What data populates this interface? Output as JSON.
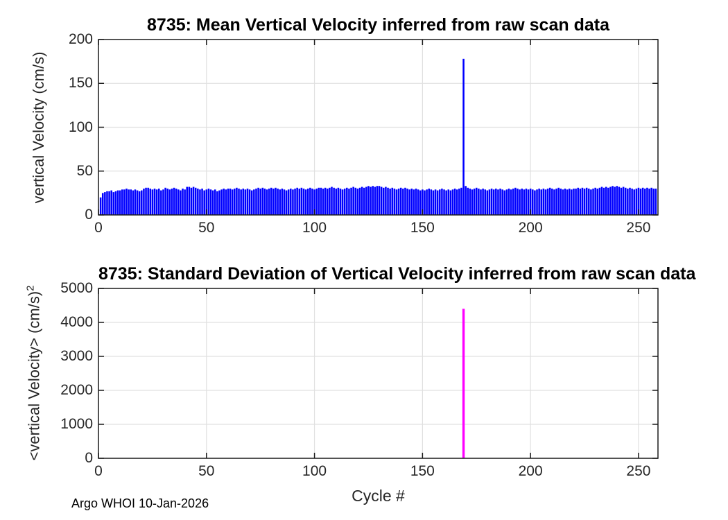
{
  "page": {
    "footer": "Argo WHOI 10-Jan-2026",
    "xlabel": "Cycle #",
    "background": "#ffffff"
  },
  "style": {
    "grid_color": "#e0e0e0",
    "axis_color": "#1a1a1a",
    "tick_label_color": "#262626"
  },
  "charts": [
    {
      "id": "mean",
      "title": "8735: Mean Vertical Velocity inferred from raw scan data",
      "ylabel": "vertical Velocity (cm/s)",
      "chart_data": {
        "type": "bar",
        "bar_color": "#0000ff",
        "xlabel": "Cycle #",
        "ylabel": "vertical Velocity (cm/s)",
        "xlim": [
          0,
          259
        ],
        "ylim": [
          0,
          200
        ],
        "xticks": [
          0,
          50,
          100,
          150,
          200,
          250
        ],
        "yticks": [
          0,
          50,
          100,
          150,
          200
        ],
        "grid": true,
        "x_start_cycle": 1,
        "values": [
          20,
          25,
          26,
          27,
          27,
          28,
          26,
          27,
          28,
          28,
          29,
          29,
          30,
          29,
          29,
          28,
          29,
          28,
          27,
          28,
          30,
          31,
          31,
          30,
          29,
          30,
          29,
          30,
          28,
          29,
          31,
          30,
          29,
          30,
          31,
          30,
          29,
          28,
          30,
          29,
          32,
          32,
          31,
          32,
          31,
          30,
          29,
          30,
          28,
          29,
          30,
          29,
          28,
          29,
          27,
          28,
          29,
          30,
          29,
          30,
          30,
          29,
          30,
          31,
          30,
          29,
          30,
          29,
          30,
          29,
          28,
          29,
          30,
          31,
          30,
          31,
          30,
          29,
          30,
          31,
          30,
          31,
          30,
          29,
          30,
          29,
          28,
          29,
          30,
          29,
          30,
          31,
          30,
          31,
          30,
          29,
          30,
          31,
          30,
          29,
          30,
          31,
          31,
          30,
          31,
          30,
          31,
          32,
          31,
          30,
          31,
          30,
          29,
          30,
          31,
          30,
          31,
          32,
          31,
          30,
          31,
          32,
          31,
          32,
          33,
          32,
          33,
          32,
          33,
          33,
          32,
          31,
          32,
          31,
          30,
          31,
          30,
          29,
          30,
          31,
          30,
          31,
          30,
          29,
          30,
          29,
          30,
          29,
          28,
          29,
          28,
          29,
          30,
          29,
          28,
          29,
          28,
          29,
          30,
          29,
          28,
          29,
          28,
          29,
          30,
          29,
          30,
          31,
          178,
          33,
          31,
          30,
          29,
          30,
          31,
          30,
          29,
          30,
          29,
          28,
          29,
          30,
          29,
          30,
          29,
          30,
          29,
          28,
          29,
          30,
          29,
          30,
          31,
          30,
          29,
          30,
          29,
          30,
          29,
          30,
          29,
          28,
          29,
          30,
          29,
          30,
          29,
          30,
          31,
          30,
          29,
          30,
          31,
          30,
          29,
          30,
          29,
          30,
          29,
          30,
          30,
          31,
          30,
          31,
          30,
          31,
          30,
          29,
          30,
          31,
          30,
          31,
          32,
          31,
          32,
          31,
          32,
          33,
          32,
          33,
          32,
          31,
          32,
          31,
          30,
          31,
          30,
          29,
          30,
          31,
          30,
          31,
          30,
          31,
          30,
          31,
          30,
          30
        ]
      }
    },
    {
      "id": "std",
      "title": "8735: Standard Deviation of Vertical Velocity inferred from raw scan data",
      "ylabel": "<vertical Velocity> (cm/s)",
      "ylabel_sup": "2",
      "chart_data": {
        "type": "bar",
        "bar_color": "#ff00ff",
        "xlabel": "Cycle #",
        "ylabel": "<vertical Velocity> (cm/s)^2",
        "xlim": [
          0,
          259
        ],
        "ylim": [
          0,
          5000
        ],
        "xticks": [
          0,
          50,
          100,
          150,
          200,
          250
        ],
        "yticks": [
          0,
          1000,
          2000,
          3000,
          4000,
          5000
        ],
        "grid": true,
        "x_start_cycle": 1,
        "n_cycles": 258,
        "baseline_value": 0,
        "spikes": [
          {
            "cycle": 169,
            "value": 4400
          }
        ]
      }
    }
  ]
}
